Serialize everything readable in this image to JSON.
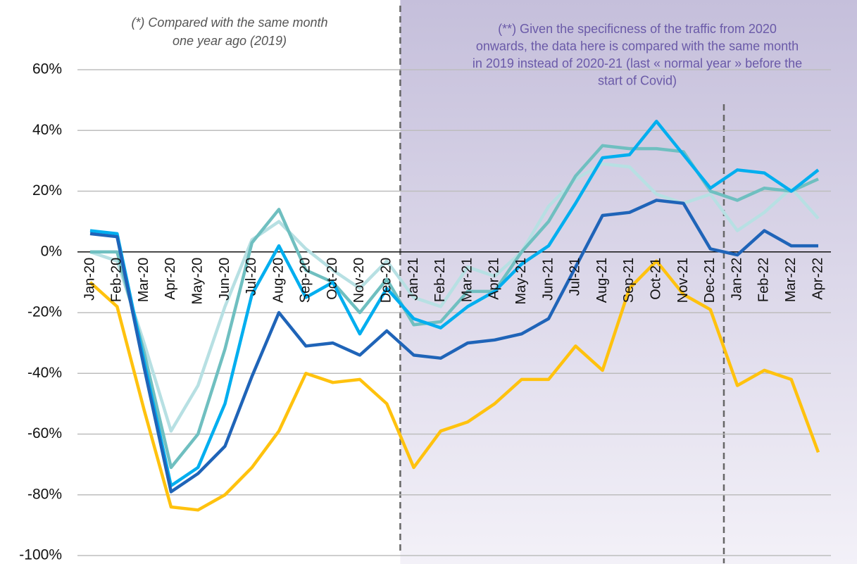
{
  "chart_data": {
    "type": "line",
    "categories": [
      "Jan-20",
      "Feb-20",
      "Mar-20",
      "Apr-20",
      "May-20",
      "Jun-20",
      "Jul-20",
      "Aug-20",
      "Sep-20",
      "Oct-20",
      "Nov-20",
      "Dec-20",
      "Jan-21",
      "Feb-21",
      "Mar-21",
      "Apr-21",
      "May-21",
      "Jun-21",
      "Jul-21",
      "Aug-21",
      "Sep-21",
      "Oct-21",
      "Nov-21",
      "Dec-21",
      "Jan-22",
      "Feb-22",
      "Mar-22",
      "Apr-22"
    ],
    "series": [
      {
        "color": "#b7e0e3",
        "values": [
          0,
          -3,
          -30,
          -59,
          -44,
          -18,
          4,
          10,
          1,
          -6,
          -12,
          -3,
          -15,
          -18,
          -5,
          -8,
          0,
          15,
          24,
          29,
          28,
          19,
          16,
          19,
          7,
          13,
          21,
          11
        ]
      },
      {
        "color": "#6fbfc0",
        "values": [
          0,
          0,
          -33,
          -71,
          -60,
          -32,
          3,
          14,
          -6,
          -10,
          -20,
          -9,
          -24,
          -23,
          -13,
          -13,
          0,
          10,
          25,
          35,
          34,
          34,
          33,
          20,
          17,
          21,
          20,
          24
        ]
      },
      {
        "color": "#00aeef",
        "values": [
          7,
          6,
          -36,
          -77,
          -71,
          -50,
          -14,
          2,
          -15,
          -10,
          -27,
          -12,
          -22,
          -25,
          -18,
          -13,
          -4,
          2,
          16,
          31,
          32,
          43,
          32,
          21,
          27,
          26,
          20,
          27
        ]
      },
      {
        "color": "#1f64b8",
        "values": [
          6,
          5,
          -38,
          -79,
          -73,
          -64,
          -41,
          -20,
          -31,
          -30,
          -34,
          -26,
          -34,
          -35,
          -30,
          -29,
          -27,
          -22,
          -5,
          12,
          13,
          17,
          16,
          1,
          -1,
          7,
          2,
          2
        ]
      },
      {
        "color": "#ffc20e",
        "values": [
          -10,
          -18,
          -52,
          -84,
          -85,
          -80,
          -71,
          -59,
          -40,
          -43,
          -42,
          -50,
          -71,
          -59,
          -56,
          -50,
          -42,
          -42,
          -31,
          -39,
          -12,
          -3,
          -14,
          -19,
          -44,
          -39,
          -42,
          -66
        ]
      }
    ],
    "ylim": [
      -100,
      60
    ],
    "yticks": [
      {
        "value": -100,
        "label": "-100%"
      },
      {
        "value": -80,
        "label": "-80%"
      },
      {
        "value": -60,
        "label": "-60%"
      },
      {
        "value": -40,
        "label": "-40%"
      },
      {
        "value": -20,
        "label": "-20%"
      },
      {
        "value": 0,
        "label": "0%"
      },
      {
        "value": 20,
        "label": "20%"
      },
      {
        "value": 40,
        "label": "40%"
      },
      {
        "value": 60,
        "label": "60%"
      }
    ],
    "grid": true,
    "annotations": [
      [
        "(*) Compared with the same month",
        "one year ago (2019)"
      ],
      [
        "(**) Given the specificness of the traffic from 2020",
        "onwards, the data here is compared with the same month",
        "in 2019 instead of 2020-21 (last « normal year » before the",
        "start of Covid)"
      ]
    ]
  }
}
